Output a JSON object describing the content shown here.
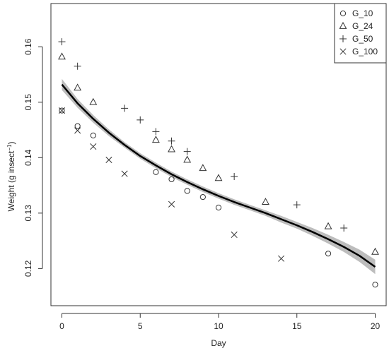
{
  "chart_data": {
    "type": "scatter",
    "xlabel": "Day",
    "ylabel_main": "Weight (g insect",
    "ylabel_sup": "−1",
    "ylabel_close": ")",
    "xlim": [
      -0.7,
      20.7
    ],
    "ylim": [
      0.1133,
      0.1678
    ],
    "xticks": [
      0,
      5,
      10,
      15,
      20
    ],
    "yticks": [
      0.12,
      0.13,
      0.14,
      0.15,
      0.16
    ],
    "xtick_labels": [
      "0",
      "5",
      "10",
      "15",
      "20"
    ],
    "ytick_labels": [
      "0.12",
      "0.13",
      "0.14",
      "0.15",
      "0.16"
    ],
    "grid": false,
    "legend_position": "top-right",
    "series": [
      {
        "name": "G_10",
        "marker": "circle",
        "points": [
          [
            0,
            0.1485
          ],
          [
            1,
            0.1457
          ],
          [
            2,
            0.144
          ],
          [
            6,
            0.1374
          ],
          [
            7,
            0.1361
          ],
          [
            8,
            0.134
          ],
          [
            9,
            0.1329
          ],
          [
            10,
            0.131
          ],
          [
            17,
            0.1227
          ],
          [
            20,
            0.1171
          ]
        ]
      },
      {
        "name": "G_24",
        "marker": "triangle",
        "points": [
          [
            0,
            0.1582
          ],
          [
            1,
            0.1526
          ],
          [
            2,
            0.15
          ],
          [
            6,
            0.1432
          ],
          [
            7,
            0.1415
          ],
          [
            8,
            0.1396
          ],
          [
            9,
            0.1381
          ],
          [
            10,
            0.1363
          ],
          [
            13,
            0.132
          ],
          [
            17,
            0.1276
          ],
          [
            20,
            0.123
          ]
        ]
      },
      {
        "name": "G_50",
        "marker": "plus",
        "points": [
          [
            0,
            0.1609
          ],
          [
            1,
            0.1565
          ],
          [
            4,
            0.1489
          ],
          [
            5,
            0.1468
          ],
          [
            6,
            0.1447
          ],
          [
            7,
            0.143
          ],
          [
            8,
            0.1411
          ],
          [
            11,
            0.1366
          ],
          [
            15,
            0.1315
          ],
          [
            18,
            0.1273
          ]
        ]
      },
      {
        "name": "G_100",
        "marker": "cross",
        "points": [
          [
            0,
            0.1485
          ],
          [
            1,
            0.1449
          ],
          [
            2,
            0.142
          ],
          [
            3,
            0.1396
          ],
          [
            4,
            0.1371
          ],
          [
            7,
            0.1316
          ],
          [
            11,
            0.1261
          ],
          [
            14,
            0.1218
          ]
        ]
      }
    ],
    "fit_line": {
      "color": "#000000",
      "band_color": "#bdbdbd",
      "points": [
        [
          0,
          0.1532
        ],
        [
          1,
          0.1498
        ],
        [
          2,
          0.147
        ],
        [
          3,
          0.1445
        ],
        [
          4,
          0.1423
        ],
        [
          5,
          0.1403
        ],
        [
          6,
          0.1386
        ],
        [
          7,
          0.137
        ],
        [
          8,
          0.1356
        ],
        [
          9,
          0.1343
        ],
        [
          10,
          0.1331
        ],
        [
          11,
          0.132
        ],
        [
          12,
          0.131
        ],
        [
          13,
          0.13
        ],
        [
          14,
          0.1289
        ],
        [
          15,
          0.1278
        ],
        [
          16,
          0.1266
        ],
        [
          17,
          0.1253
        ],
        [
          18,
          0.1239
        ],
        [
          19,
          0.1223
        ],
        [
          20,
          0.1203
        ]
      ],
      "band": [
        [
          0,
          0.001
        ],
        [
          1,
          0.0008
        ],
        [
          2,
          0.0007
        ],
        [
          3,
          0.0006
        ],
        [
          4,
          0.0005
        ],
        [
          5,
          0.0005
        ],
        [
          6,
          0.0005
        ],
        [
          7,
          0.0005
        ],
        [
          8,
          0.0005
        ],
        [
          9,
          0.0005
        ],
        [
          10,
          0.0005
        ],
        [
          11,
          0.0005
        ],
        [
          12,
          0.0005
        ],
        [
          13,
          0.0005
        ],
        [
          14,
          0.0006
        ],
        [
          15,
          0.0006
        ],
        [
          16,
          0.0007
        ],
        [
          17,
          0.0008
        ],
        [
          18,
          0.0009
        ],
        [
          19,
          0.0011
        ],
        [
          20,
          0.0013
        ]
      ]
    }
  }
}
